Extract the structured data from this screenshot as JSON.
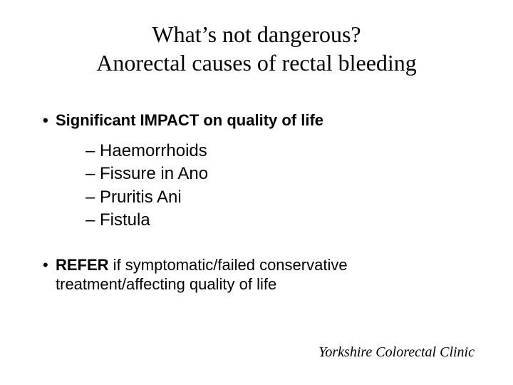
{
  "colors": {
    "background": "#ffffff",
    "text": "#000000"
  },
  "typography": {
    "title_font": "Times New Roman",
    "body_font": "Arial",
    "title_fontsize": 32,
    "bullet_fontsize": 22,
    "subitem_fontsize": 24,
    "footer_fontsize": 20
  },
  "title": {
    "line1": "What’s not dangerous?",
    "line2": "Anorectal causes of rectal bleeding"
  },
  "impact_bullet": "Significant IMPACT on quality of life",
  "subitems": {
    "0": "– Haemorrhoids",
    "1": "– Fissure in Ano",
    "2": "– Pruritis Ani",
    "3": "– Fistula"
  },
  "refer": {
    "bold": "REFER",
    "rest": " if symptomatic/failed conservative treatment/affecting quality of life"
  },
  "footer": "Yorkshire Colorectal Clinic",
  "bullet_glyph": "•"
}
